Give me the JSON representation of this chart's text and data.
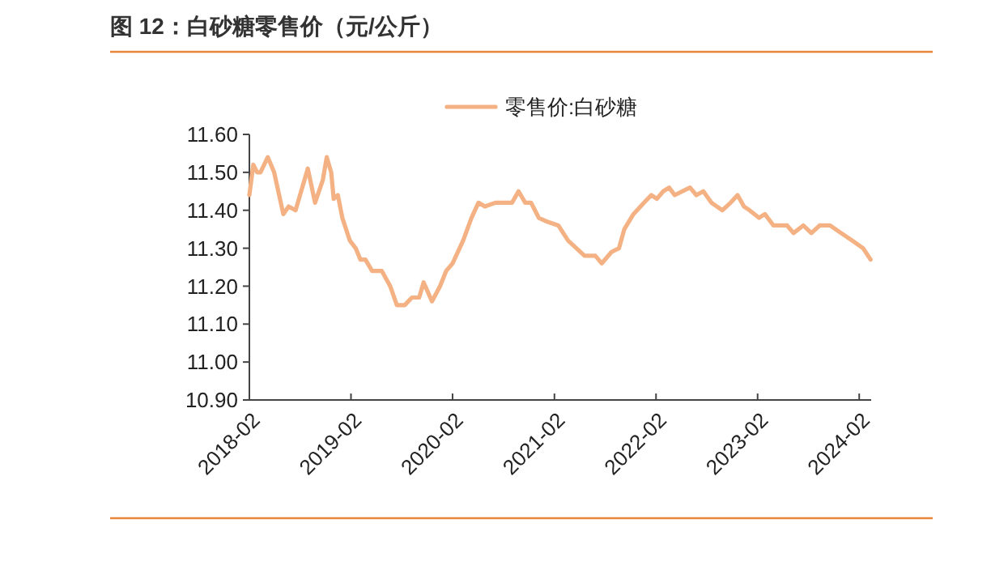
{
  "chart_data": {
    "type": "line",
    "title": "图 12：白砂糖零售价（元/公斤）",
    "x": [
      "2018-02-01",
      "2018-02-15",
      "2018-03-01",
      "2018-03-13",
      "2018-04-08",
      "2018-05-01",
      "2018-06-03",
      "2018-06-22",
      "2018-07-17",
      "2018-08-02",
      "2018-08-30",
      "2018-09-25",
      "2018-10-23",
      "2018-11-06",
      "2018-11-22",
      "2018-12-01",
      "2018-12-16",
      "2019-01-01",
      "2019-01-28",
      "2019-02-18",
      "2019-03-07",
      "2019-03-25",
      "2019-04-18",
      "2019-05-23",
      "2019-06-22",
      "2019-07-16",
      "2019-08-13",
      "2019-09-08",
      "2019-10-04",
      "2019-10-20",
      "2019-11-19",
      "2019-12-18",
      "2020-01-09",
      "2020-02-01",
      "2020-03-10",
      "2020-04-09",
      "2020-05-04",
      "2020-05-27",
      "2020-07-04",
      "2020-08-13",
      "2020-09-02",
      "2020-09-25",
      "2020-10-19",
      "2020-11-09",
      "2020-12-07",
      "2021-01-06",
      "2021-02-15",
      "2021-03-22",
      "2021-04-21",
      "2021-05-20",
      "2021-06-28",
      "2021-07-21",
      "2021-08-25",
      "2021-09-21",
      "2021-10-10",
      "2021-11-12",
      "2021-12-20",
      "2022-01-15",
      "2022-02-04",
      "2022-02-27",
      "2022-03-20",
      "2022-04-09",
      "2022-06-03",
      "2022-06-26",
      "2022-07-21",
      "2022-08-19",
      "2022-09-27",
      "2022-10-27",
      "2022-11-21",
      "2022-12-14",
      "2023-01-03",
      "2023-02-06",
      "2023-02-27",
      "2023-03-30",
      "2023-04-25",
      "2023-05-18",
      "2023-06-10",
      "2023-07-15",
      "2023-08-13",
      "2023-09-12",
      "2023-10-19",
      "2023-11-28",
      "2024-01-07",
      "2024-02-15",
      "2024-03-13"
    ],
    "series": [
      {
        "name": "零售价:白砂糖",
        "color": "#f4b183",
        "values": [
          11.44,
          11.52,
          11.5,
          11.5,
          11.54,
          11.5,
          11.39,
          11.41,
          11.4,
          11.44,
          11.51,
          11.42,
          11.48,
          11.54,
          11.5,
          11.43,
          11.44,
          11.38,
          11.32,
          11.3,
          11.27,
          11.27,
          11.24,
          11.24,
          11.2,
          11.15,
          11.15,
          11.17,
          11.17,
          11.21,
          11.16,
          11.2,
          11.24,
          11.26,
          11.32,
          11.38,
          11.42,
          11.41,
          11.42,
          11.42,
          11.42,
          11.45,
          11.42,
          11.42,
          11.38,
          11.37,
          11.36,
          11.32,
          11.3,
          11.28,
          11.28,
          11.26,
          11.29,
          11.3,
          11.35,
          11.39,
          11.42,
          11.44,
          11.43,
          11.45,
          11.46,
          11.44,
          11.46,
          11.44,
          11.45,
          11.42,
          11.4,
          11.42,
          11.44,
          11.41,
          11.4,
          11.38,
          11.39,
          11.36,
          11.36,
          11.36,
          11.34,
          11.36,
          11.34,
          11.36,
          11.36,
          11.34,
          11.32,
          11.3,
          11.27
        ]
      }
    ],
    "xlim": [
      "2018-02-01",
      "2024-03-15"
    ],
    "xticks": [
      "2018-02",
      "2019-02",
      "2020-02",
      "2021-02",
      "2022-02",
      "2023-02",
      "2024-02"
    ],
    "ylim": [
      10.9,
      11.6
    ],
    "yticks": [
      {
        "value": 10.9,
        "label": "10.90"
      },
      {
        "value": 11.0,
        "label": "11.00"
      },
      {
        "value": 11.1,
        "label": "11.10"
      },
      {
        "value": 11.2,
        "label": "11.20"
      },
      {
        "value": 11.3,
        "label": "11.30"
      },
      {
        "value": 11.4,
        "label": "11.40"
      },
      {
        "value": 11.5,
        "label": "11.50"
      },
      {
        "value": 11.6,
        "label": "11.60"
      }
    ],
    "legend": "top",
    "grid": false,
    "marker": "none",
    "line_style": "solid"
  }
}
